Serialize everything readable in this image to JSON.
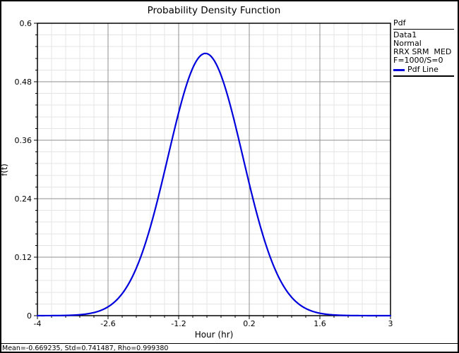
{
  "window": {
    "background": "#ffffff",
    "border_color": "#000000"
  },
  "title": "Probability Density Function",
  "legend": {
    "header": "Pdf",
    "items": [
      "Data1",
      "Normal",
      "RRX SRM  MED",
      "F=1000/S=0"
    ],
    "line_entry": {
      "label": "Pdf Line",
      "color": "#0000dd"
    }
  },
  "status_bar": {
    "text": "Mean=-0.669235, Std=0.741487, Rho=0.999380"
  },
  "chart_data": {
    "type": "line",
    "title": "Probability Density Function",
    "xlabel": "Hour (hr)",
    "ylabel": "f(t)",
    "xlim": [
      -4,
      3
    ],
    "ylim": [
      0,
      0.6
    ],
    "x_ticks": [
      -4,
      -2.6,
      -1.2,
      0.2,
      1.6,
      3
    ],
    "x_tick_labels": [
      "-4",
      "-2.6",
      "-1.2",
      "0.2",
      "1.6",
      "3"
    ],
    "y_ticks": [
      0,
      0.12,
      0.24,
      0.36,
      0.48,
      0.6
    ],
    "y_tick_labels": [
      "0",
      "0.12",
      "0.24",
      "0.36",
      "0.48",
      "0.6"
    ],
    "x_minor_step": 0.28,
    "y_minor_step": 0.024,
    "grid": true,
    "grid_major_color": "#8f8f8f",
    "grid_minor_color": "#e4e4e4",
    "legend_position": "top-right-outside",
    "series": [
      {
        "name": "Pdf Line",
        "color": "#0000dd",
        "distribution": "normal",
        "mean": -0.669235,
        "std": 0.741487,
        "peak_value": 0.538136,
        "points": [
          {
            "x": -4.0,
            "y": 0.0
          },
          {
            "x": -3.5,
            "y": 0.0004
          },
          {
            "x": -3.0,
            "y": 0.0038
          },
          {
            "x": -2.5,
            "y": 0.0255
          },
          {
            "x": -2.0,
            "y": 0.1076
          },
          {
            "x": -1.5,
            "y": 0.2873
          },
          {
            "x": -1.0,
            "y": 0.4872
          },
          {
            "x": -0.669235,
            "y": 0.5381
          },
          {
            "x": -0.5,
            "y": 0.5242
          },
          {
            "x": 0.0,
            "y": 0.3581
          },
          {
            "x": 0.5,
            "y": 0.1552
          },
          {
            "x": 1.0,
            "y": 0.0427
          },
          {
            "x": 1.5,
            "y": 0.0075
          },
          {
            "x": 2.0,
            "y": 0.0008
          },
          {
            "x": 2.5,
            "y": 0.0001
          },
          {
            "x": 3.0,
            "y": 0.0
          }
        ]
      }
    ],
    "stats": {
      "mean": -0.669235,
      "std": 0.741487,
      "rho": 0.99938
    }
  }
}
